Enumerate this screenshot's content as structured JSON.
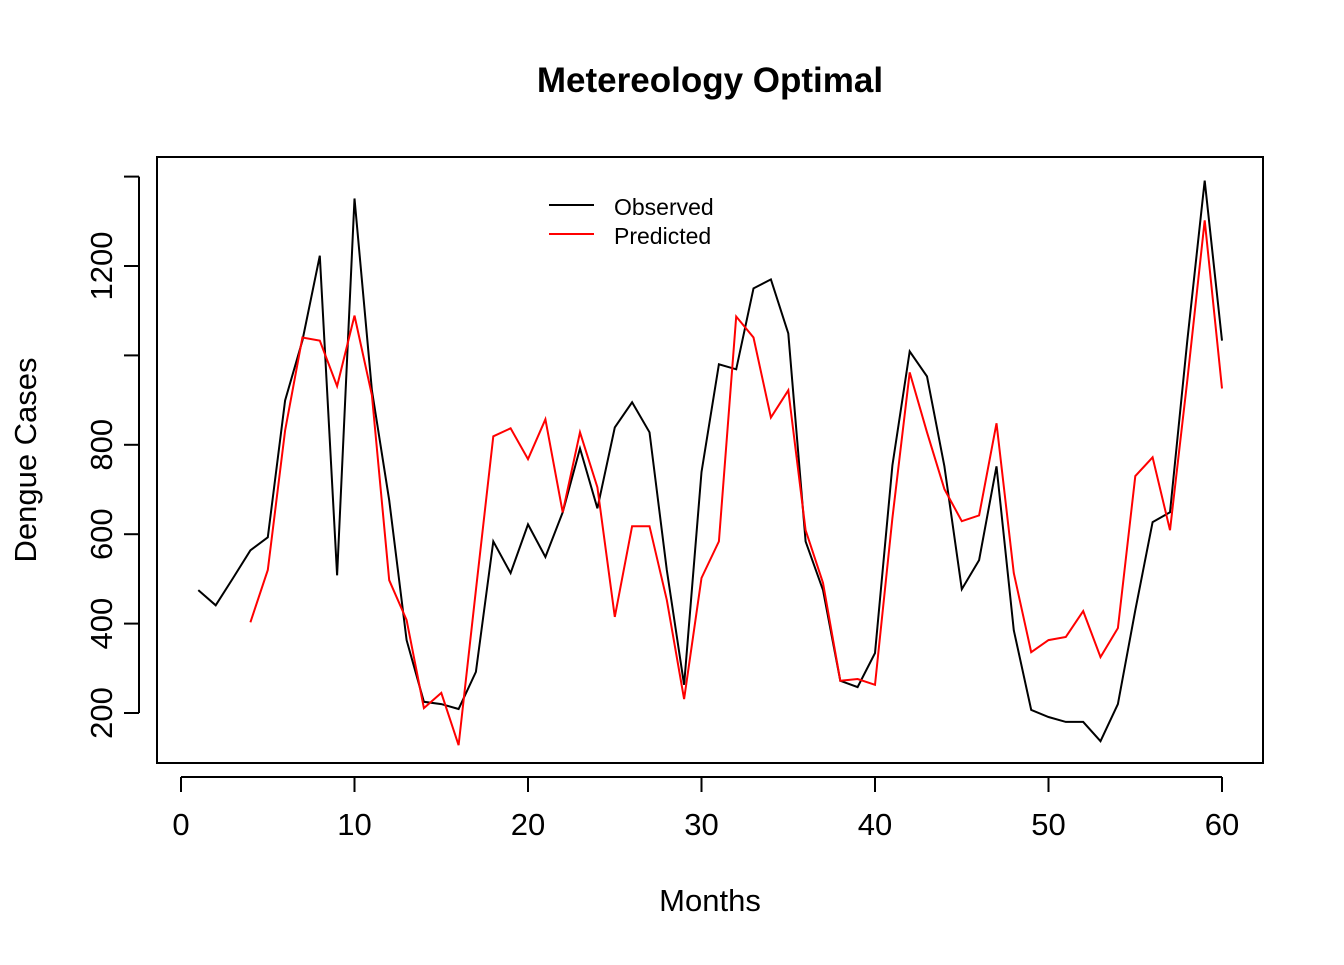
{
  "chart_data": {
    "type": "line",
    "title": "Metereology Optimal",
    "xlabel": "Months",
    "ylabel": "Dengue Cases",
    "xlim": [
      0,
      60
    ],
    "ylim": [
      100,
      1400
    ],
    "x_ticks": [
      0,
      10,
      20,
      30,
      40,
      50,
      60
    ],
    "x_tick_labels": [
      "0",
      "10",
      "20",
      "30",
      "40",
      "50",
      "60"
    ],
    "y_ticks": [
      200,
      400,
      600,
      800,
      1000,
      1200,
      1400
    ],
    "y_tick_labels": [
      "200",
      "400",
      "600",
      "800",
      "",
      "1200",
      ""
    ],
    "grid": false,
    "legend_position": "top-center",
    "series": [
      {
        "name": "Observed",
        "color": "#000000",
        "x": [
          1,
          2,
          3,
          4,
          5,
          6,
          7,
          8,
          9,
          10,
          11,
          12,
          13,
          14,
          15,
          16,
          17,
          18,
          19,
          20,
          21,
          22,
          23,
          24,
          25,
          26,
          27,
          28,
          29,
          30,
          31,
          32,
          33,
          34,
          35,
          36,
          37,
          38,
          39,
          40,
          41,
          42,
          43,
          44,
          45,
          46,
          47,
          48,
          49,
          50,
          51,
          52,
          53,
          54,
          55,
          56,
          57,
          58,
          59,
          60
        ],
        "values": [
          475,
          441,
          502,
          564,
          593,
          899,
          1033,
          1223,
          508,
          1351,
          922,
          676,
          363,
          225,
          220,
          209,
          292,
          584,
          513,
          622,
          549,
          649,
          792,
          658,
          839,
          895,
          828,
          520,
          263,
          739,
          980,
          969,
          1150,
          1170,
          1049,
          584,
          475,
          272,
          258,
          334,
          754,
          1009,
          953,
          752,
          477,
          542,
          752,
          385,
          207,
          191,
          180,
          180,
          137,
          220,
          430,
          627,
          649,
          1033,
          1391,
          1033
        ]
      },
      {
        "name": "Predicted",
        "color": "#ff0000",
        "x": [
          4,
          5,
          6,
          7,
          8,
          9,
          10,
          11,
          12,
          13,
          14,
          15,
          16,
          17,
          18,
          19,
          20,
          21,
          22,
          23,
          24,
          25,
          26,
          27,
          28,
          29,
          30,
          31,
          32,
          33,
          34,
          35,
          36,
          37,
          38,
          39,
          40,
          41,
          42,
          43,
          44,
          45,
          46,
          47,
          48,
          49,
          50,
          51,
          52,
          53,
          54,
          55,
          56,
          57,
          58,
          59,
          60
        ],
        "values": [
          403,
          520,
          832,
          1040,
          1033,
          931,
          1089,
          911,
          497,
          408,
          211,
          245,
          128,
          475,
          819,
          837,
          768,
          857,
          649,
          828,
          705,
          415,
          618,
          618,
          453,
          231,
          502,
          584,
          1087,
          1040,
          861,
          922,
          609,
          491,
          272,
          276,
          263,
          636,
          962,
          828,
          701,
          629,
          642,
          848,
          513,
          336,
          363,
          370,
          428,
          325,
          390,
          730,
          772,
          609,
          944,
          1302,
          926
        ]
      }
    ]
  }
}
